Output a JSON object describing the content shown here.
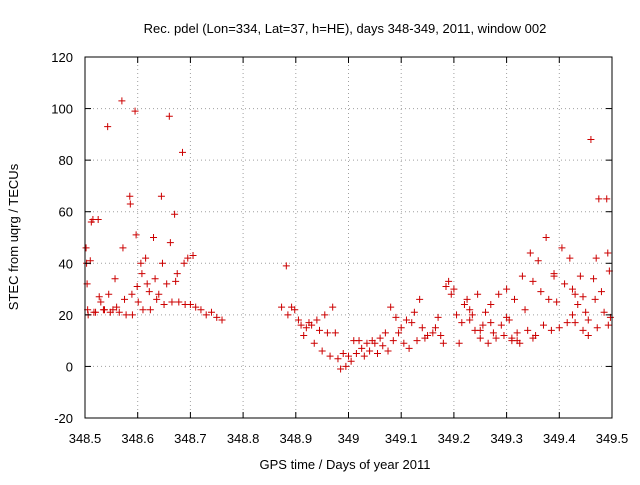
{
  "chart_data": {
    "type": "scatter",
    "title": "Rec. pdel (Lon=334, Lat=37, h=HE), days 348-349, 2011, window 002",
    "xlabel": "GPS time / Days of year 2011",
    "ylabel": "STEC from uqrg / TECUs",
    "xlim": [
      348.5,
      349.5
    ],
    "ylim": [
      -20,
      120
    ],
    "xticks": [
      348.5,
      348.6,
      348.7,
      348.8,
      348.9,
      349,
      349.1,
      349.2,
      349.3,
      349.4,
      349.5
    ],
    "xtick_labels": [
      "348.5",
      "348.6",
      "348.7",
      "348.8",
      "348.9",
      "349",
      "349.1",
      "349.2",
      "349.3",
      "349.4",
      "349.5"
    ],
    "yticks": [
      -20,
      0,
      20,
      40,
      60,
      80,
      100,
      120
    ],
    "ytick_labels": [
      "-20",
      "0",
      "20",
      "40",
      "60",
      "80",
      "100",
      "120"
    ],
    "grid": true,
    "legend": "none",
    "marker": "+",
    "color": "#cc0000",
    "points": [
      [
        348.502,
        46
      ],
      [
        348.503,
        40
      ],
      [
        348.504,
        32
      ],
      [
        348.505,
        22
      ],
      [
        348.506,
        20
      ],
      [
        348.51,
        41
      ],
      [
        348.512,
        56
      ],
      [
        348.515,
        57
      ],
      [
        348.517,
        21
      ],
      [
        348.52,
        21
      ],
      [
        348.525,
        57
      ],
      [
        348.527,
        27
      ],
      [
        348.53,
        25
      ],
      [
        348.535,
        22
      ],
      [
        348.537,
        22
      ],
      [
        348.543,
        93
      ],
      [
        348.545,
        28
      ],
      [
        348.548,
        21
      ],
      [
        348.553,
        22
      ],
      [
        348.557,
        34
      ],
      [
        348.56,
        23
      ],
      [
        348.565,
        21
      ],
      [
        348.57,
        103
      ],
      [
        348.572,
        46
      ],
      [
        348.575,
        26
      ],
      [
        348.578,
        20
      ],
      [
        348.585,
        66
      ],
      [
        348.586,
        63
      ],
      [
        348.589,
        28
      ],
      [
        348.59,
        20
      ],
      [
        348.595,
        99
      ],
      [
        348.597,
        51
      ],
      [
        348.599,
        31
      ],
      [
        348.601,
        25
      ],
      [
        348.606,
        40
      ],
      [
        348.608,
        36
      ],
      [
        348.61,
        22
      ],
      [
        348.615,
        42
      ],
      [
        348.618,
        32
      ],
      [
        348.622,
        29
      ],
      [
        348.624,
        22
      ],
      [
        348.63,
        50
      ],
      [
        348.633,
        34
      ],
      [
        348.636,
        26
      ],
      [
        348.64,
        28
      ],
      [
        348.645,
        66
      ],
      [
        348.647,
        40
      ],
      [
        348.65,
        24
      ],
      [
        348.655,
        32
      ],
      [
        348.66,
        97
      ],
      [
        348.662,
        48
      ],
      [
        348.665,
        25
      ],
      [
        348.67,
        59
      ],
      [
        348.672,
        33
      ],
      [
        348.675,
        36
      ],
      [
        348.678,
        25
      ],
      [
        348.685,
        83
      ],
      [
        348.688,
        40
      ],
      [
        348.69,
        24
      ],
      [
        348.695,
        42
      ],
      [
        348.7,
        24
      ],
      [
        348.705,
        43
      ],
      [
        348.71,
        23
      ],
      [
        348.72,
        22
      ],
      [
        348.73,
        20
      ],
      [
        348.74,
        21
      ],
      [
        348.75,
        19
      ],
      [
        348.76,
        18
      ],
      [
        348.873,
        23
      ],
      [
        348.882,
        39
      ],
      [
        348.885,
        20
      ],
      [
        348.892,
        23
      ],
      [
        348.898,
        22
      ],
      [
        348.905,
        18
      ],
      [
        348.91,
        16
      ],
      [
        348.915,
        12
      ],
      [
        348.92,
        15
      ],
      [
        348.925,
        17
      ],
      [
        348.93,
        16
      ],
      [
        348.935,
        9
      ],
      [
        348.94,
        18
      ],
      [
        348.945,
        14
      ],
      [
        348.95,
        6
      ],
      [
        348.955,
        20
      ],
      [
        348.96,
        13
      ],
      [
        348.965,
        4
      ],
      [
        348.97,
        23
      ],
      [
        348.975,
        13
      ],
      [
        348.98,
        3
      ],
      [
        348.985,
        -1
      ],
      [
        348.99,
        5
      ],
      [
        348.995,
        0
      ],
      [
        349.0,
        4
      ],
      [
        349.005,
        2
      ],
      [
        349.01,
        10
      ],
      [
        349.015,
        5
      ],
      [
        349.02,
        10
      ],
      [
        349.025,
        7
      ],
      [
        349.03,
        4
      ],
      [
        349.035,
        9
      ],
      [
        349.04,
        6
      ],
      [
        349.045,
        10
      ],
      [
        349.05,
        9
      ],
      [
        349.055,
        5
      ],
      [
        349.06,
        11
      ],
      [
        349.065,
        8
      ],
      [
        349.07,
        13
      ],
      [
        349.075,
        6
      ],
      [
        349.08,
        23
      ],
      [
        349.085,
        10
      ],
      [
        349.09,
        19
      ],
      [
        349.095,
        13
      ],
      [
        349.1,
        15
      ],
      [
        349.105,
        9
      ],
      [
        349.11,
        18
      ],
      [
        349.115,
        7
      ],
      [
        349.12,
        17
      ],
      [
        349.125,
        21
      ],
      [
        349.13,
        10
      ],
      [
        349.135,
        26
      ],
      [
        349.14,
        15
      ],
      [
        349.145,
        11
      ],
      [
        349.15,
        12
      ],
      [
        349.16,
        13
      ],
      [
        349.165,
        15
      ],
      [
        349.17,
        19
      ],
      [
        349.175,
        12
      ],
      [
        349.18,
        9
      ],
      [
        349.185,
        31
      ],
      [
        349.19,
        33
      ],
      [
        349.195,
        28
      ],
      [
        349.2,
        30
      ],
      [
        349.205,
        20
      ],
      [
        349.21,
        9
      ],
      [
        349.215,
        17
      ],
      [
        349.22,
        24
      ],
      [
        349.225,
        26
      ],
      [
        349.23,
        22
      ],
      [
        349.235,
        20
      ],
      [
        349.24,
        14
      ],
      [
        349.245,
        28
      ],
      [
        349.25,
        11
      ],
      [
        349.255,
        16
      ],
      [
        349.26,
        21
      ],
      [
        349.265,
        9
      ],
      [
        349.27,
        24
      ],
      [
        349.275,
        13
      ],
      [
        349.28,
        11
      ],
      [
        349.285,
        28
      ],
      [
        349.29,
        16
      ],
      [
        349.295,
        12
      ],
      [
        349.3,
        30
      ],
      [
        349.305,
        18
      ],
      [
        349.31,
        10
      ],
      [
        349.315,
        26
      ],
      [
        349.32,
        13
      ],
      [
        349.325,
        9
      ],
      [
        349.33,
        35
      ],
      [
        349.335,
        22
      ],
      [
        349.34,
        14
      ],
      [
        349.345,
        44
      ],
      [
        349.35,
        33
      ],
      [
        349.355,
        12
      ],
      [
        349.36,
        41
      ],
      [
        349.365,
        29
      ],
      [
        349.37,
        16
      ],
      [
        349.375,
        50
      ],
      [
        349.38,
        26
      ],
      [
        349.385,
        14
      ],
      [
        349.39,
        36
      ],
      [
        349.395,
        25
      ],
      [
        349.4,
        15
      ],
      [
        349.405,
        46
      ],
      [
        349.41,
        32
      ],
      [
        349.415,
        17
      ],
      [
        349.42,
        42
      ],
      [
        349.425,
        30
      ],
      [
        349.43,
        17
      ],
      [
        349.435,
        24
      ],
      [
        349.44,
        35
      ],
      [
        349.445,
        27
      ],
      [
        349.45,
        21
      ],
      [
        349.455,
        18
      ],
      [
        349.46,
        88
      ],
      [
        349.465,
        34
      ],
      [
        349.47,
        42
      ],
      [
        349.475,
        65
      ],
      [
        349.48,
        29
      ],
      [
        349.485,
        21
      ],
      [
        349.49,
        65
      ],
      [
        349.492,
        44
      ],
      [
        349.495,
        37
      ],
      [
        349.497,
        19
      ],
      [
        349.493,
        16
      ],
      [
        349.468,
        26
      ],
      [
        349.472,
        15
      ],
      [
        349.455,
        12
      ],
      [
        349.445,
        14
      ],
      [
        349.43,
        28
      ],
      [
        349.425,
        20
      ],
      [
        349.39,
        35
      ],
      [
        349.35,
        11
      ],
      [
        349.32,
        10
      ],
      [
        349.31,
        11
      ],
      [
        349.3,
        19
      ],
      [
        349.27,
        17
      ],
      [
        349.25,
        14
      ],
      [
        349.23,
        18
      ]
    ]
  }
}
